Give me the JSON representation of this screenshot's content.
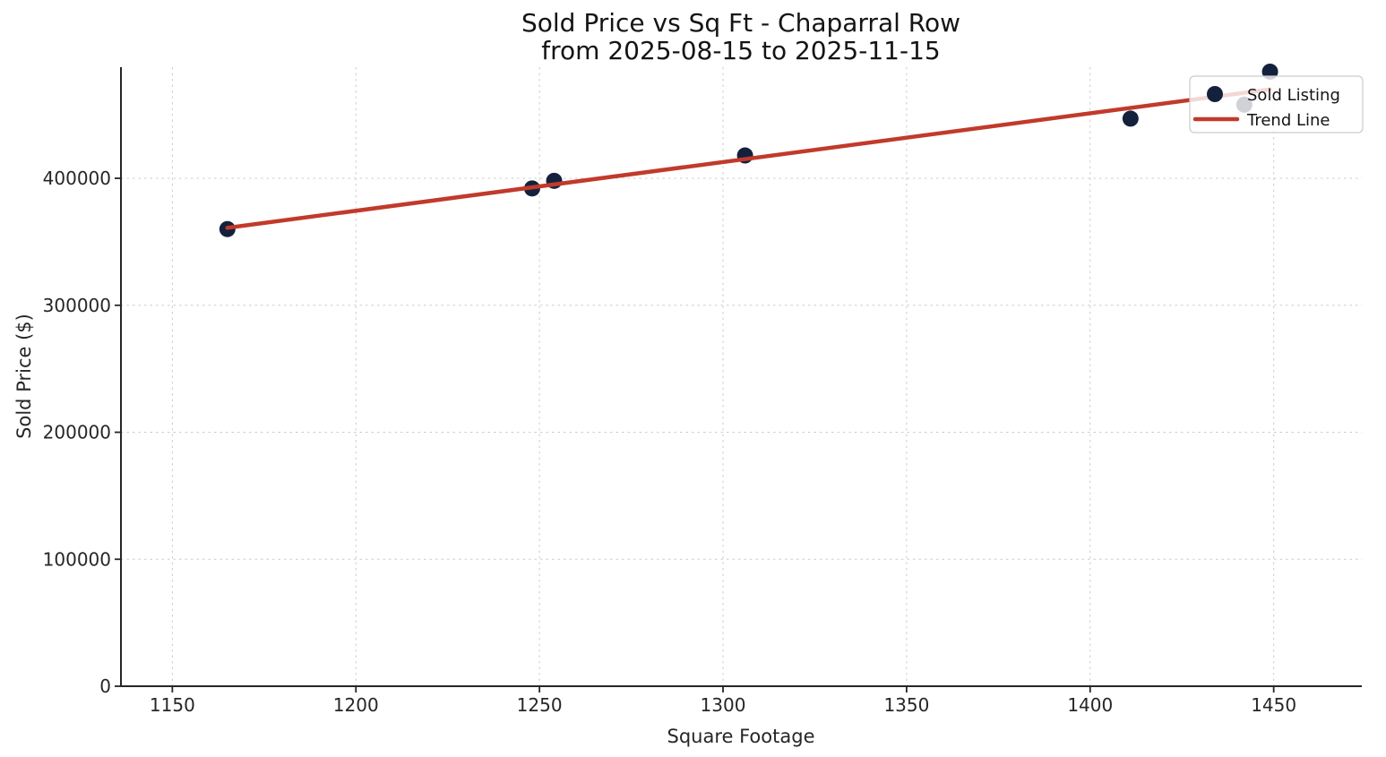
{
  "title": {
    "line1": "Sold Price vs Sq Ft - Chaparral Row",
    "line2": "from 2025-08-15 to 2025-11-15"
  },
  "chart_data": {
    "type": "scatter",
    "title": "Sold Price vs Sq Ft - Chaparral Row\nfrom 2025-08-15 to 2025-11-15",
    "xlabel": "Square Footage",
    "ylabel": "Sold Price ($)",
    "xlim": [
      1136,
      1474
    ],
    "ylim": [
      0,
      487500
    ],
    "x_ticks": [
      1150,
      1200,
      1250,
      1300,
      1350,
      1400,
      1450
    ],
    "y_ticks": [
      0,
      100000,
      200000,
      300000,
      400000
    ],
    "grid": true,
    "grid_style": "dashed",
    "grid_color": "#cccccc",
    "background_color": "#ffffff",
    "legend": {
      "position": "upper right",
      "entries": [
        {
          "label": "Sold Listing",
          "type": "marker",
          "color": "#14213d"
        },
        {
          "label": "Trend Line",
          "type": "line",
          "color": "#c13a2b"
        }
      ]
    },
    "series": [
      {
        "name": "Sold Listing",
        "type": "scatter",
        "color": "#14213d",
        "points": [
          [
            1165,
            360000
          ],
          [
            1248,
            392000
          ],
          [
            1254,
            398000
          ],
          [
            1306,
            418000
          ],
          [
            1411,
            447000
          ],
          [
            1442,
            458000
          ],
          [
            1449,
            484000
          ]
        ]
      },
      {
        "name": "Trend Line",
        "type": "line",
        "color": "#c13a2b",
        "points": [
          [
            1165,
            361000
          ],
          [
            1449,
            470000
          ]
        ]
      }
    ]
  }
}
